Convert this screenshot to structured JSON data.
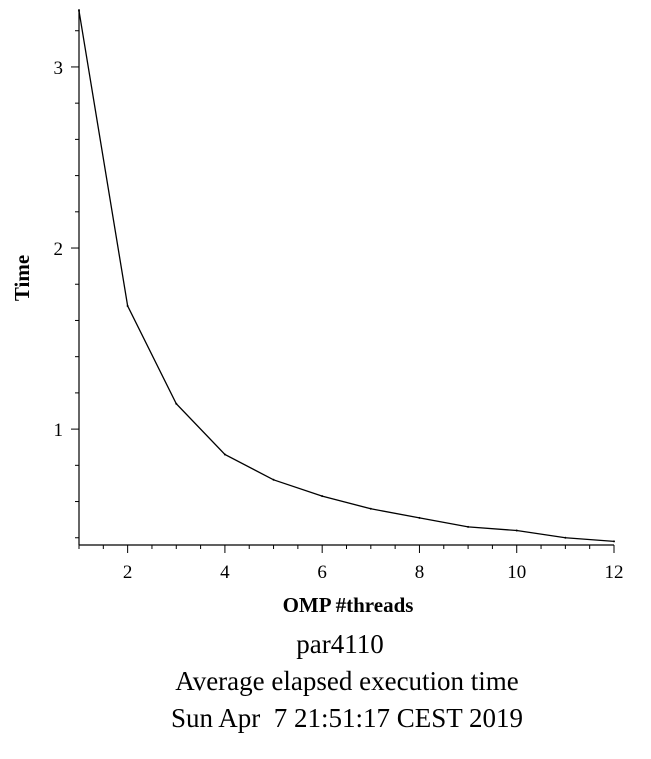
{
  "chart_data": {
    "type": "line",
    "title": "",
    "xlabel": "OMP #threads",
    "ylabel": "Time",
    "x": [
      1,
      2,
      3,
      4,
      5,
      6,
      7,
      8,
      9,
      10,
      11,
      12
    ],
    "series": [
      {
        "values": [
          3.31,
          1.68,
          1.14,
          0.86,
          0.72,
          0.63,
          0.56,
          0.51,
          0.46,
          0.44,
          0.4,
          0.38
        ]
      }
    ],
    "xlim": [
      1,
      12
    ],
    "ylim": [
      0.36,
      3.32
    ],
    "x_ticks": [
      2,
      4,
      6,
      8,
      10,
      12
    ],
    "x_minor_step": 0.5,
    "y_ticks": [
      1,
      2,
      3
    ],
    "y_minor_step": 0.2,
    "grid": false,
    "line_color": "#000000"
  },
  "caption": {
    "line1": "par4110",
    "line2": "Average elapsed execution time",
    "line3": "Sun Apr  7 21:51:17 CEST 2019"
  }
}
